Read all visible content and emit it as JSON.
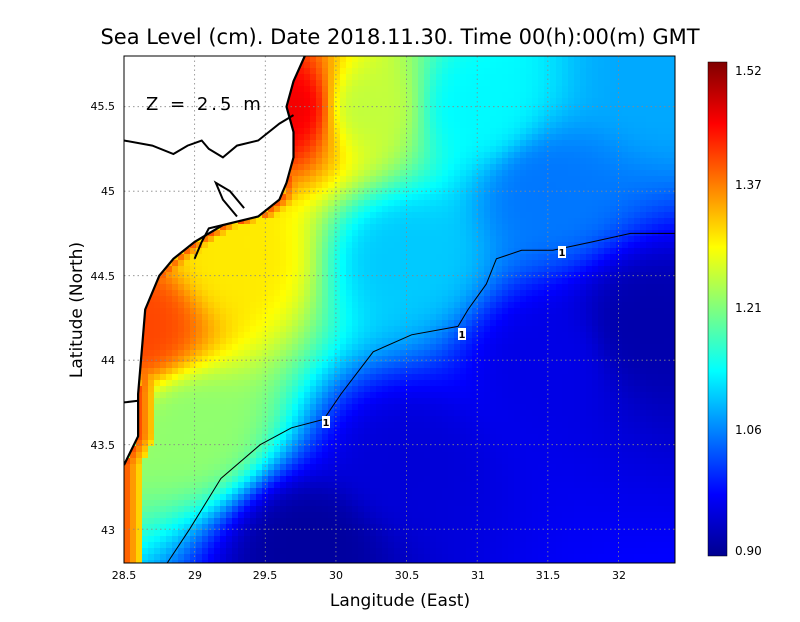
{
  "title": "Sea Level (cm). Date 2018.11.30. Time 00(h):00(m) GMT",
  "depth_label": "Z = 2.5 m",
  "x_axis": {
    "label": "Langitude (East)",
    "ticks": [
      "28.5",
      "29",
      "29.5",
      "30",
      "30.5",
      "31",
      "31.5",
      "32"
    ]
  },
  "y_axis": {
    "label": "Latitude (North)",
    "ticks": [
      "43",
      "43.5",
      "44",
      "44.5",
      "45",
      "45.5"
    ]
  },
  "colorbar": {
    "ticks": [
      "1.52",
      "1.37",
      "1.21",
      "1.06",
      "0.90"
    ],
    "min": 0.9,
    "max": 1.52
  },
  "contour_labels": [
    "1",
    "1",
    "1"
  ],
  "chart_data": {
    "type": "heatmap",
    "title": "Sea Level (cm). Date 2018.11.30. Time 00(h):00(m) GMT",
    "xlabel": "Langitude (East)",
    "ylabel": "Latitude (North)",
    "xlim": [
      28.5,
      32.4
    ],
    "ylim": [
      42.8,
      45.8
    ],
    "colorbar_range": [
      0.9,
      1.52
    ],
    "colormap": "jet",
    "contour_level": 1,
    "grid": true,
    "coastline": [
      [
        28.5,
        43.38
      ],
      [
        28.6,
        43.55
      ],
      [
        28.6,
        43.8
      ],
      [
        28.63,
        44.1
      ],
      [
        28.65,
        44.3
      ],
      [
        28.75,
        44.5
      ],
      [
        28.85,
        44.6
      ],
      [
        29.0,
        44.7
      ],
      [
        29.2,
        44.8
      ],
      [
        29.45,
        44.85
      ],
      [
        29.6,
        44.95
      ],
      [
        29.65,
        45.05
      ],
      [
        29.7,
        45.2
      ],
      [
        29.7,
        45.35
      ],
      [
        29.65,
        45.5
      ],
      [
        29.7,
        45.65
      ],
      [
        29.78,
        45.8
      ]
    ],
    "contour_1": [
      [
        28.82,
        42.8
      ],
      [
        28.95,
        43.0
      ],
      [
        29.2,
        43.3
      ],
      [
        29.45,
        43.5
      ],
      [
        29.7,
        43.6
      ],
      [
        29.9,
        43.65
      ],
      [
        30.05,
        43.8
      ],
      [
        30.25,
        44.05
      ],
      [
        30.55,
        44.15
      ],
      [
        30.85,
        44.2
      ],
      [
        30.95,
        44.3
      ],
      [
        31.05,
        44.45
      ],
      [
        31.15,
        44.6
      ],
      [
        31.3,
        44.65
      ],
      [
        31.55,
        44.65
      ],
      [
        31.8,
        44.7
      ],
      [
        32.1,
        44.75
      ],
      [
        32.4,
        44.75
      ]
    ],
    "field_samples": [
      {
        "lon": 28.6,
        "lat": 44.2,
        "value": 1.4
      },
      {
        "lon": 29.7,
        "lat": 45.5,
        "value": 1.45
      },
      {
        "lon": 29.3,
        "lat": 44.6,
        "value": 1.3
      },
      {
        "lon": 29.0,
        "lat": 43.6,
        "value": 1.22
      },
      {
        "lon": 30.2,
        "lat": 45.5,
        "value": 1.25
      },
      {
        "lon": 31.0,
        "lat": 45.5,
        "value": 1.13
      },
      {
        "lon": 30.5,
        "lat": 44.6,
        "value": 1.1
      },
      {
        "lon": 31.5,
        "lat": 45.0,
        "value": 1.05
      },
      {
        "lon": 31.5,
        "lat": 44.0,
        "value": 0.96
      },
      {
        "lon": 32.2,
        "lat": 44.2,
        "value": 0.92
      },
      {
        "lon": 29.8,
        "lat": 42.9,
        "value": 0.91
      },
      {
        "lon": 30.5,
        "lat": 43.4,
        "value": 0.95
      },
      {
        "lon": 32.3,
        "lat": 45.7,
        "value": 1.08
      }
    ]
  }
}
